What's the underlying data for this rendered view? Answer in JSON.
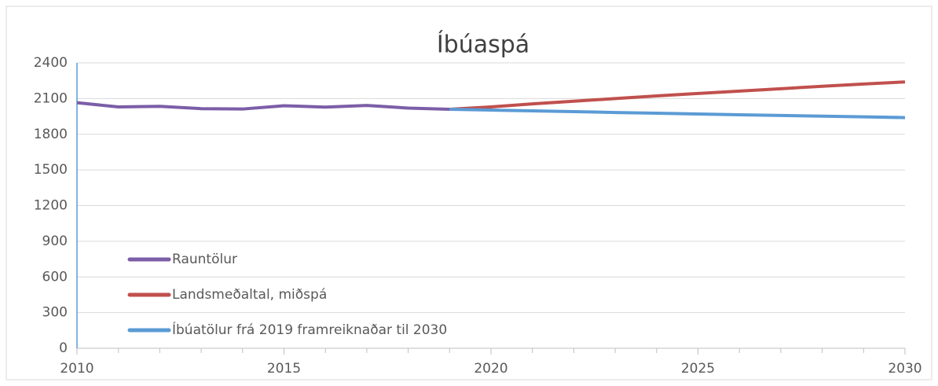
{
  "chart_data": {
    "type": "line",
    "title": "Íbúaspá",
    "x": [
      2010,
      2011,
      2012,
      2013,
      2014,
      2015,
      2016,
      2017,
      2018,
      2019,
      2020,
      2021,
      2022,
      2023,
      2024,
      2025,
      2026,
      2027,
      2028,
      2029,
      2030
    ],
    "series": [
      {
        "name": "Rauntölur",
        "color": "#7b5ea7",
        "values": [
          2065,
          2030,
          2035,
          2015,
          2012,
          2040,
          2028,
          2042,
          2020,
          2010,
          null,
          null,
          null,
          null,
          null,
          null,
          null,
          null,
          null,
          null,
          null
        ]
      },
      {
        "name": "Landsmeðaltal, miðspá",
        "color": "#c0504d",
        "values": [
          null,
          null,
          null,
          null,
          null,
          null,
          null,
          null,
          null,
          2010,
          2030,
          2055,
          2078,
          2100,
          2122,
          2143,
          2163,
          2183,
          2203,
          2222,
          2240
        ]
      },
      {
        "name": "Íbúatölur frá 2019 framreiknaðar til 2030",
        "color": "#5b9bd5",
        "values": [
          null,
          null,
          null,
          null,
          null,
          null,
          null,
          null,
          null,
          2010,
          2003,
          1997,
          1990,
          1983,
          1977,
          1970,
          1964,
          1958,
          1952,
          1946,
          1940
        ]
      }
    ],
    "xlim": [
      2010,
      2030
    ],
    "xticks": [
      2010,
      2015,
      2020,
      2025,
      2030
    ],
    "ylim": [
      0,
      2400
    ],
    "yticks": [
      0,
      300,
      600,
      900,
      1200,
      1500,
      1800,
      2100,
      2400
    ],
    "grid": true,
    "legend": "lower left"
  }
}
